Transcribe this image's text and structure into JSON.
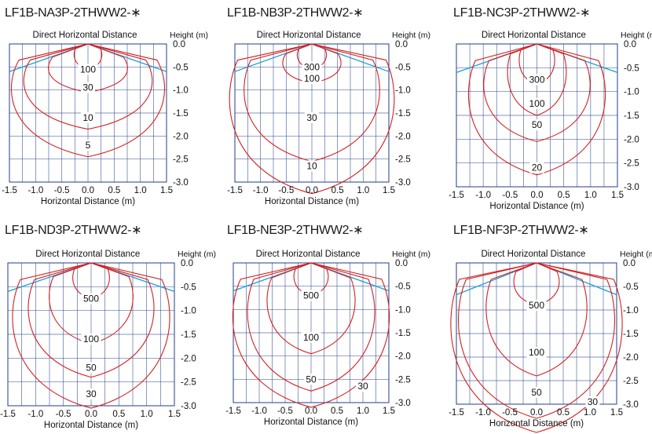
{
  "colors": {
    "grid": "#1f3f88",
    "contour": "#d42020",
    "cutoff": "#1aa0d8",
    "text": "#111111"
  },
  "chart_data": [
    {
      "type": "contour",
      "title": "LF1B-NA3P-2THWW2-∗",
      "top_label": "Direct Horizontal Distance",
      "ylabel": "Height (m)",
      "xlabel": "Horizontal Distance (m)",
      "xlim": [
        -1.5,
        1.5
      ],
      "ylim": [
        -3.0,
        0.0
      ],
      "x_ticks": [
        "-1.5",
        "-1.0",
        "-0.5",
        "0.0",
        "0.5",
        "1.0",
        "1.5"
      ],
      "y_ticks": [
        "0.0",
        "-0.5",
        "-1.0",
        "-1.5",
        "-2.0",
        "-2.5",
        "-3.0"
      ],
      "cutoff_slope": 0.4,
      "contours": [
        {
          "label": "100",
          "halfwidth": 0.28,
          "depth": 0.55,
          "label_y": -0.55
        },
        {
          "label": "30",
          "halfwidth": 0.8,
          "depth": 1.05,
          "label_y": -0.95
        },
        {
          "label": "10",
          "halfwidth": 1.3,
          "depth": 1.85,
          "label_y": -1.6
        },
        {
          "label": "5",
          "halfwidth": 1.55,
          "depth": 2.45,
          "label_y": -2.2
        }
      ]
    },
    {
      "type": "contour",
      "title": "LF1B-NB3P-2THWW2-∗",
      "top_label": "Direct Horizontal Distance",
      "ylabel": "Height (m)",
      "xlabel": "Horizontal Distance (m)",
      "xlim": [
        -1.5,
        1.5
      ],
      "ylim": [
        -3.0,
        0.0
      ],
      "x_ticks": [
        "-1.5",
        "-1.0",
        "-0.5",
        "0.0",
        "0.5",
        "1.0",
        "1.5"
      ],
      "y_ticks": [
        "0.0",
        "-0.5",
        "-1.0",
        "-1.5",
        "-2.0",
        "-2.5",
        "-3.0"
      ],
      "cutoff_slope": 0.4,
      "contours": [
        {
          "label": "300",
          "halfwidth": 0.3,
          "depth": 0.55,
          "label_y": -0.5
        },
        {
          "label": "100",
          "halfwidth": 0.6,
          "depth": 0.85,
          "label_y": -0.75
        },
        {
          "label": "30",
          "halfwidth": 1.4,
          "depth": 2.55,
          "label_y": -1.6
        },
        {
          "label": "10",
          "halfwidth": 1.7,
          "depth": 3.25,
          "label_y": -2.65
        }
      ]
    },
    {
      "type": "contour",
      "title": "LF1B-NC3P-2THWW2-∗",
      "top_label": "Direct Horizontal Distance",
      "ylabel": "Height (m)",
      "xlabel": "Horizontal Distance (m)",
      "xlim": [
        -1.5,
        1.5
      ],
      "ylim": [
        -3.0,
        0.0
      ],
      "x_ticks": [
        "-1.5",
        "-1.0",
        "-0.5",
        "0.0",
        "0.5",
        "1.0",
        "1.5"
      ],
      "y_ticks": [
        "0.0",
        "-0.5",
        "-1.0",
        "-1.5",
        "-2.0",
        "-2.5",
        "-3.0"
      ],
      "cutoff_slope": 0.4,
      "contours": [
        {
          "label": "300",
          "halfwidth": 0.35,
          "depth": 0.85,
          "label_y": -0.75
        },
        {
          "label": "100",
          "halfwidth": 0.58,
          "depth": 1.5,
          "label_y": -1.25
        },
        {
          "label": "50",
          "halfwidth": 1.05,
          "depth": 2.05,
          "label_y": -1.7
        },
        {
          "label": "20",
          "halfwidth": 1.35,
          "depth": 2.75,
          "label_y": -2.6
        }
      ]
    },
    {
      "type": "contour",
      "title": "LF1B-ND3P-2THWW2-∗",
      "top_label": "Direct Horizontal Distance",
      "ylabel": "Height (m)",
      "xlabel": "Horizontal Distance (m)",
      "xlim": [
        -1.5,
        1.5
      ],
      "ylim": [
        -3.0,
        0.0
      ],
      "x_ticks": [
        "-1.5",
        "-1.0",
        "-0.5",
        "0.0",
        "0.5",
        "1.0",
        "1.5"
      ],
      "y_ticks": [
        "0.0",
        "-0.5",
        "-1.0",
        "-1.5",
        "-2.0",
        "-2.5",
        "-3.0"
      ],
      "cutoff_slope": 0.4,
      "contours": [
        {
          "label": "500",
          "halfwidth": 0.35,
          "depth": 0.75,
          "label_y": -0.75
        },
        {
          "label": "100",
          "halfwidth": 0.8,
          "depth": 1.7,
          "label_y": -1.6
        },
        {
          "label": "50",
          "halfwidth": 1.2,
          "depth": 2.4,
          "label_y": -2.2
        },
        {
          "label": "30",
          "halfwidth": 1.5,
          "depth": 3.05,
          "label_y": -2.75
        }
      ]
    },
    {
      "type": "contour",
      "title": "LF1B-NE3P-2THWW2-∗",
      "top_label": "Direct Horizontal Distance",
      "ylabel": "Height (m)",
      "xlabel": "Horizontal Distance (m)",
      "xlim": [
        -1.5,
        1.5
      ],
      "ylim": [
        -3.0,
        0.0
      ],
      "x_ticks": [
        "-1.5",
        "-1.0",
        "-0.5",
        "0.0",
        "0.5",
        "1.0",
        "1.5"
      ],
      "y_ticks": [
        "0.0",
        "-0.5",
        "-1.0",
        "-1.5",
        "-2.0",
        "-2.5",
        "-3.0"
      ],
      "cutoff_slope": 0.4,
      "contours": [
        {
          "label": "500",
          "halfwidth": 0.35,
          "depth": 0.7,
          "label_y": -0.7
        },
        {
          "label": "100",
          "halfwidth": 0.9,
          "depth": 1.95,
          "label_y": -1.6
        },
        {
          "label": "50",
          "halfwidth": 1.3,
          "depth": 2.75,
          "label_y": -2.5
        },
        {
          "label": "30",
          "halfwidth": 1.6,
          "depth": 3.1,
          "label_y": -2.65,
          "label_x": 1.0
        }
      ]
    },
    {
      "type": "contour",
      "title": "LF1B-NF3P-2THWW2-∗",
      "top_label": "Direct Horizontal Distance",
      "ylabel": "Height (m)",
      "xlabel": "Horizontal Distance (m)",
      "xlim": [
        -1.5,
        1.5
      ],
      "ylim": [
        -3.0,
        0.0
      ],
      "x_ticks": [
        "-1.5",
        "-1.0",
        "-0.5",
        "0.0",
        "0.5",
        "1.0",
        "1.5"
      ],
      "y_ticks": [
        "0.0",
        "-0.5",
        "-1.0",
        "-1.5",
        "-2.0",
        "-2.5",
        "-3.0"
      ],
      "cutoff_slope": 0.45,
      "contours": [
        {
          "label": "500",
          "halfwidth": 0.45,
          "depth": 0.9,
          "label_y": -0.9
        },
        {
          "label": "100",
          "halfwidth": 1.0,
          "depth": 2.4,
          "label_y": -1.9
        },
        {
          "label": "50",
          "halfwidth": 1.55,
          "depth": 3.3,
          "label_y": -2.75
        },
        {
          "label": "30",
          "halfwidth": 1.7,
          "depth": 3.6,
          "label_y": -2.95,
          "label_x": 1.05
        }
      ]
    }
  ]
}
